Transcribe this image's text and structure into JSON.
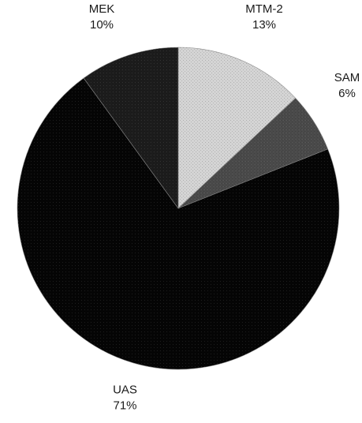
{
  "chart_data": {
    "type": "pie",
    "slices": [
      {
        "label": "MTM-2",
        "value": 13,
        "value_label": "13%",
        "color": "#d4d4d4"
      },
      {
        "label": "SAM",
        "value": 6,
        "value_label": "6%",
        "color": "#4a4a4a"
      },
      {
        "label": "UAS",
        "value": 71,
        "value_label": "71%",
        "color": "#050505"
      },
      {
        "label": "MEK",
        "value": 10,
        "value_label": "10%",
        "color": "#1c1c1c"
      }
    ],
    "start_angle": "12 o'clock",
    "direction": "clockwise",
    "legend": "none",
    "labels_outside": true
  }
}
